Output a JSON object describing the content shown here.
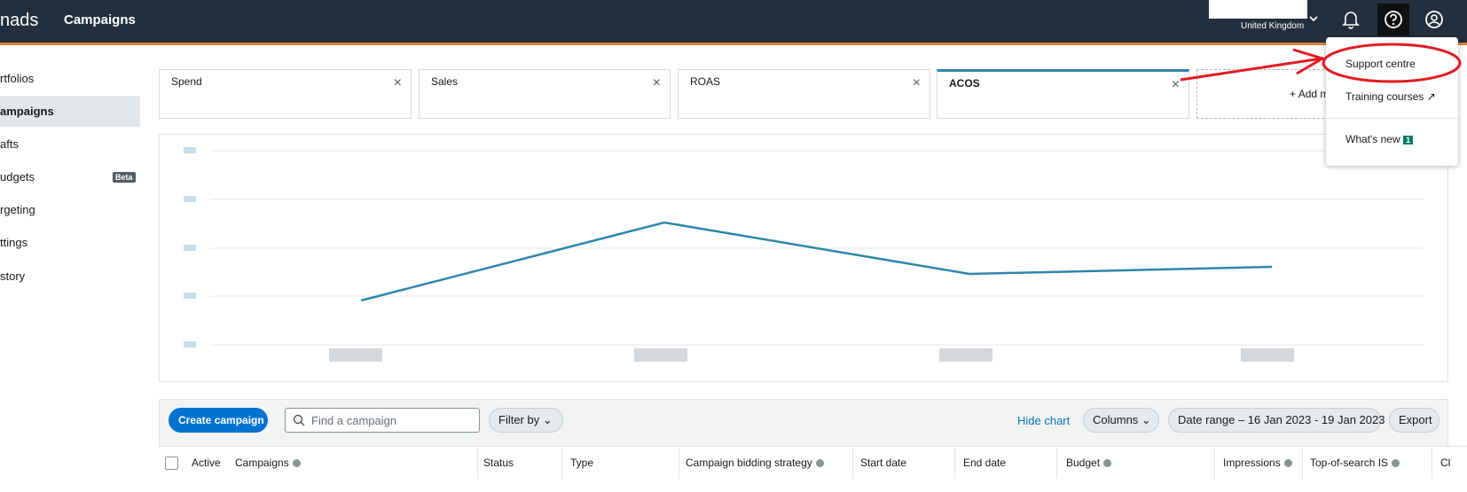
{
  "header": {
    "logo": "nads",
    "title": "Campaigns",
    "country": "United Kingdom"
  },
  "sidebar": {
    "items": [
      "rtfolios",
      "ampaigns",
      "afts",
      "udgets",
      "rgeting",
      "ttings",
      "story"
    ],
    "badge": "Beta"
  },
  "metrics": {
    "cards": [
      "Spend",
      "Sales",
      "ROAS",
      "ACOS"
    ],
    "add": "Add metric"
  },
  "help_menu": {
    "items": [
      "Support centre",
      "Training courses",
      "What's new"
    ],
    "new_count": 1
  },
  "toolbar": {
    "create": "Create campaign",
    "search_placeholder": "Find a campaign",
    "filter": "Filter by",
    "hide_chart": "Hide chart",
    "columns": "Columns",
    "date_range": "Date range – 16 Jan 2023 - 19 Jan 2023",
    "export": "Export"
  },
  "table": {
    "columns": [
      "Active",
      "Campaigns",
      "Status",
      "Type",
      "Campaign bidding strategy",
      "Start date",
      "End date",
      "Budget",
      "Impressions",
      "Top-of-search IS",
      "Cl"
    ]
  }
}
